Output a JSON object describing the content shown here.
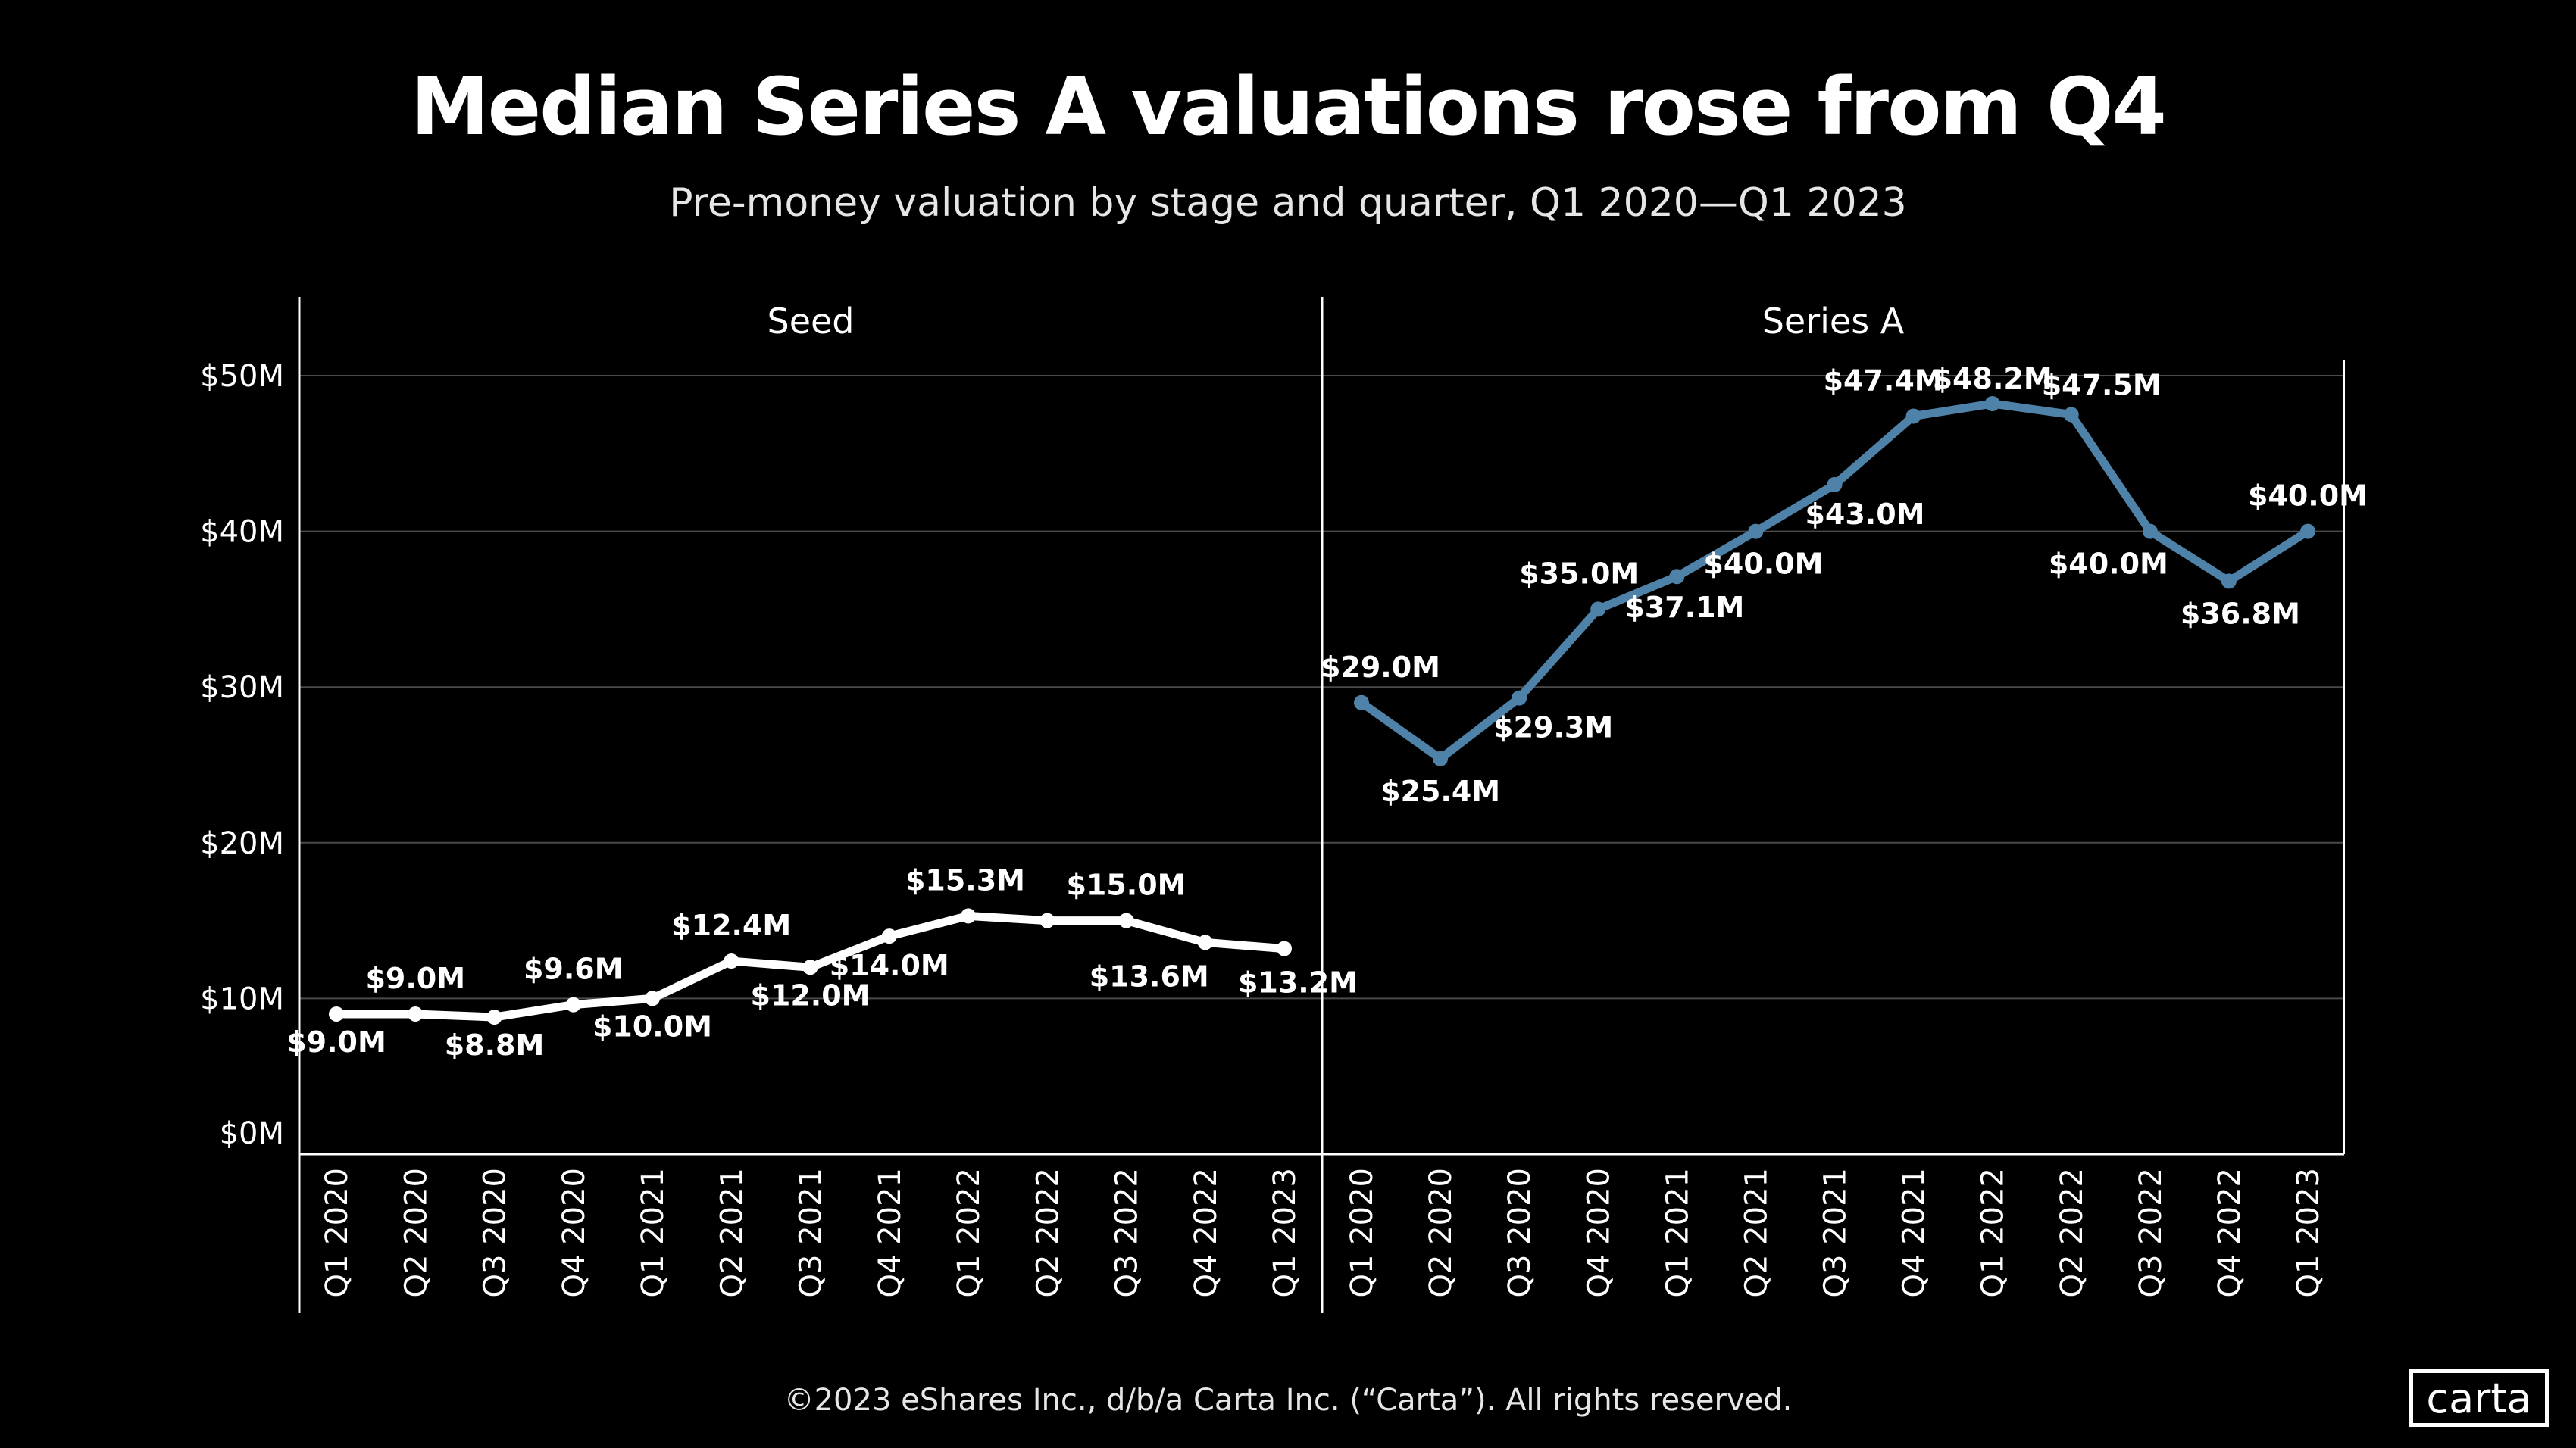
{
  "title": "Median Series A valuations rose from Q4",
  "subtitle": "Pre-money valuation by stage and quarter, Q1 2020—Q1 2023",
  "footer": "©2023 eShares Inc., d/b/a Carta Inc. (“Carta”). All rights reserved.",
  "logo": "carta",
  "chart_data": {
    "type": "line",
    "title": "Median Series A valuations rose from Q4",
    "subtitle": "Pre-money valuation by stage and quarter, Q1 2020—Q1 2023",
    "ylim": [
      0,
      50
    ],
    "y_ticks": [
      0,
      10,
      20,
      30,
      40,
      50
    ],
    "y_tick_labels": [
      "$0M",
      "$10M",
      "$20M",
      "$30M",
      "$40M",
      "$50M"
    ],
    "grid": true,
    "categories": [
      "Q1 2020",
      "Q2 2020",
      "Q3 2020",
      "Q4 2020",
      "Q1 2021",
      "Q2 2021",
      "Q3 2021",
      "Q4 2021",
      "Q1 2022",
      "Q2 2022",
      "Q3 2022",
      "Q4 2022",
      "Q1 2023"
    ],
    "panels": [
      {
        "name": "Seed",
        "color": "#ffffff",
        "values": [
          9.0,
          9.0,
          8.8,
          9.6,
          10.0,
          12.4,
          12.0,
          14.0,
          15.3,
          15.0,
          15.0,
          13.6,
          13.2
        ],
        "labels": [
          "$9.0M",
          "$9.0M",
          "$8.8M",
          "$9.6M",
          "$10.0M",
          "$12.4M",
          "$12.0M",
          "$14.0M",
          "$15.3M",
          "",
          "$15.0M",
          "$13.6M",
          "$13.2M"
        ]
      },
      {
        "name": "Series A",
        "color": "#4f82a9",
        "values": [
          29.0,
          25.4,
          29.3,
          35.0,
          37.1,
          40.0,
          43.0,
          47.4,
          48.2,
          47.5,
          40.0,
          36.8,
          40.0
        ],
        "labels": [
          "$29.0M",
          "$25.4M",
          "$29.3M",
          "$35.0M",
          "$37.1M",
          "$40.0M",
          "$43.0M",
          "$47.4M",
          "$48.2M",
          "$47.5M",
          "$40.0M",
          "$36.8M",
          "$40.0M"
        ]
      }
    ]
  }
}
